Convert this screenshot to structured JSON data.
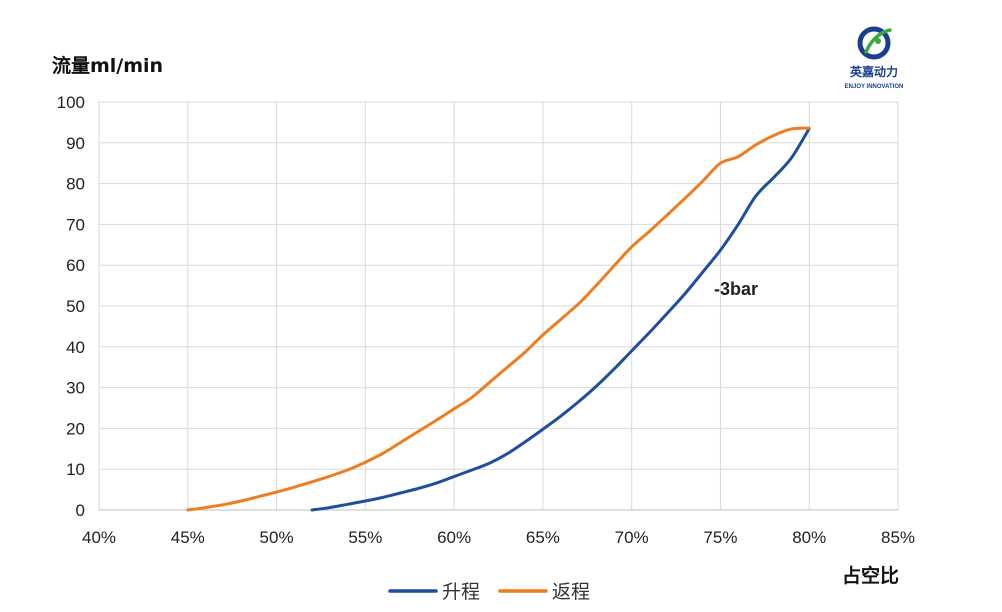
{
  "logo": {
    "name_cn": "英嘉动力",
    "name_en": "ENJOY INNOVATION",
    "brand_color": "#1b3f8f",
    "accent_color": "#3aaa35"
  },
  "chart_data": {
    "type": "line",
    "xlabel": "占空比",
    "ylabel": "流量ml/min",
    "xlim": [
      0.4,
      0.85
    ],
    "ylim": [
      0,
      100
    ],
    "x_ticks": [
      "40%",
      "45%",
      "50%",
      "55%",
      "60%",
      "65%",
      "70%",
      "75%",
      "80%",
      "85%"
    ],
    "x_tick_values": [
      0.4,
      0.45,
      0.5,
      0.55,
      0.6,
      0.65,
      0.7,
      0.75,
      0.8,
      0.85
    ],
    "y_ticks": [
      "0",
      "10",
      "20",
      "30",
      "40",
      "50",
      "60",
      "70",
      "80",
      "90",
      "100"
    ],
    "y_tick_values": [
      0,
      10,
      20,
      30,
      40,
      50,
      60,
      70,
      80,
      90,
      100
    ],
    "grid": true,
    "legend_position": "bottom",
    "annotation": "-3bar",
    "series": [
      {
        "name": "升程",
        "color": "#1f4e9e",
        "x": [
          0.52,
          0.53,
          0.54,
          0.55,
          0.56,
          0.57,
          0.58,
          0.59,
          0.6,
          0.61,
          0.62,
          0.63,
          0.64,
          0.65,
          0.66,
          0.67,
          0.68,
          0.69,
          0.7,
          0.71,
          0.72,
          0.73,
          0.74,
          0.75,
          0.76,
          0.77,
          0.78,
          0.79,
          0.8
        ],
        "y": [
          0,
          0.6,
          1.4,
          2.2,
          3.1,
          4.2,
          5.3,
          6.6,
          8.2,
          9.8,
          11.5,
          13.8,
          16.7,
          19.8,
          23.0,
          26.5,
          30.3,
          34.5,
          39.0,
          43.5,
          48.2,
          53.0,
          58.3,
          63.7,
          70.0,
          77.0,
          81.5,
          86.3,
          93.5
        ]
      },
      {
        "name": "返程",
        "color": "#ee7d1f",
        "x": [
          0.45,
          0.46,
          0.47,
          0.48,
          0.49,
          0.5,
          0.51,
          0.52,
          0.53,
          0.54,
          0.55,
          0.56,
          0.57,
          0.58,
          0.59,
          0.6,
          0.61,
          0.62,
          0.63,
          0.64,
          0.65,
          0.66,
          0.67,
          0.68,
          0.69,
          0.7,
          0.71,
          0.72,
          0.73,
          0.74,
          0.75,
          0.76,
          0.77,
          0.78,
          0.79,
          0.8
        ],
        "y": [
          0,
          0.6,
          1.3,
          2.2,
          3.3,
          4.4,
          5.6,
          6.9,
          8.3,
          9.8,
          11.7,
          13.9,
          16.6,
          19.3,
          22.0,
          24.8,
          27.6,
          31.3,
          35.0,
          38.7,
          42.9,
          46.7,
          50.5,
          55.0,
          59.8,
          64.5,
          68.3,
          72.3,
          76.4,
          80.6,
          85.0,
          86.6,
          89.5,
          91.8,
          93.4,
          93.6
        ]
      }
    ]
  }
}
